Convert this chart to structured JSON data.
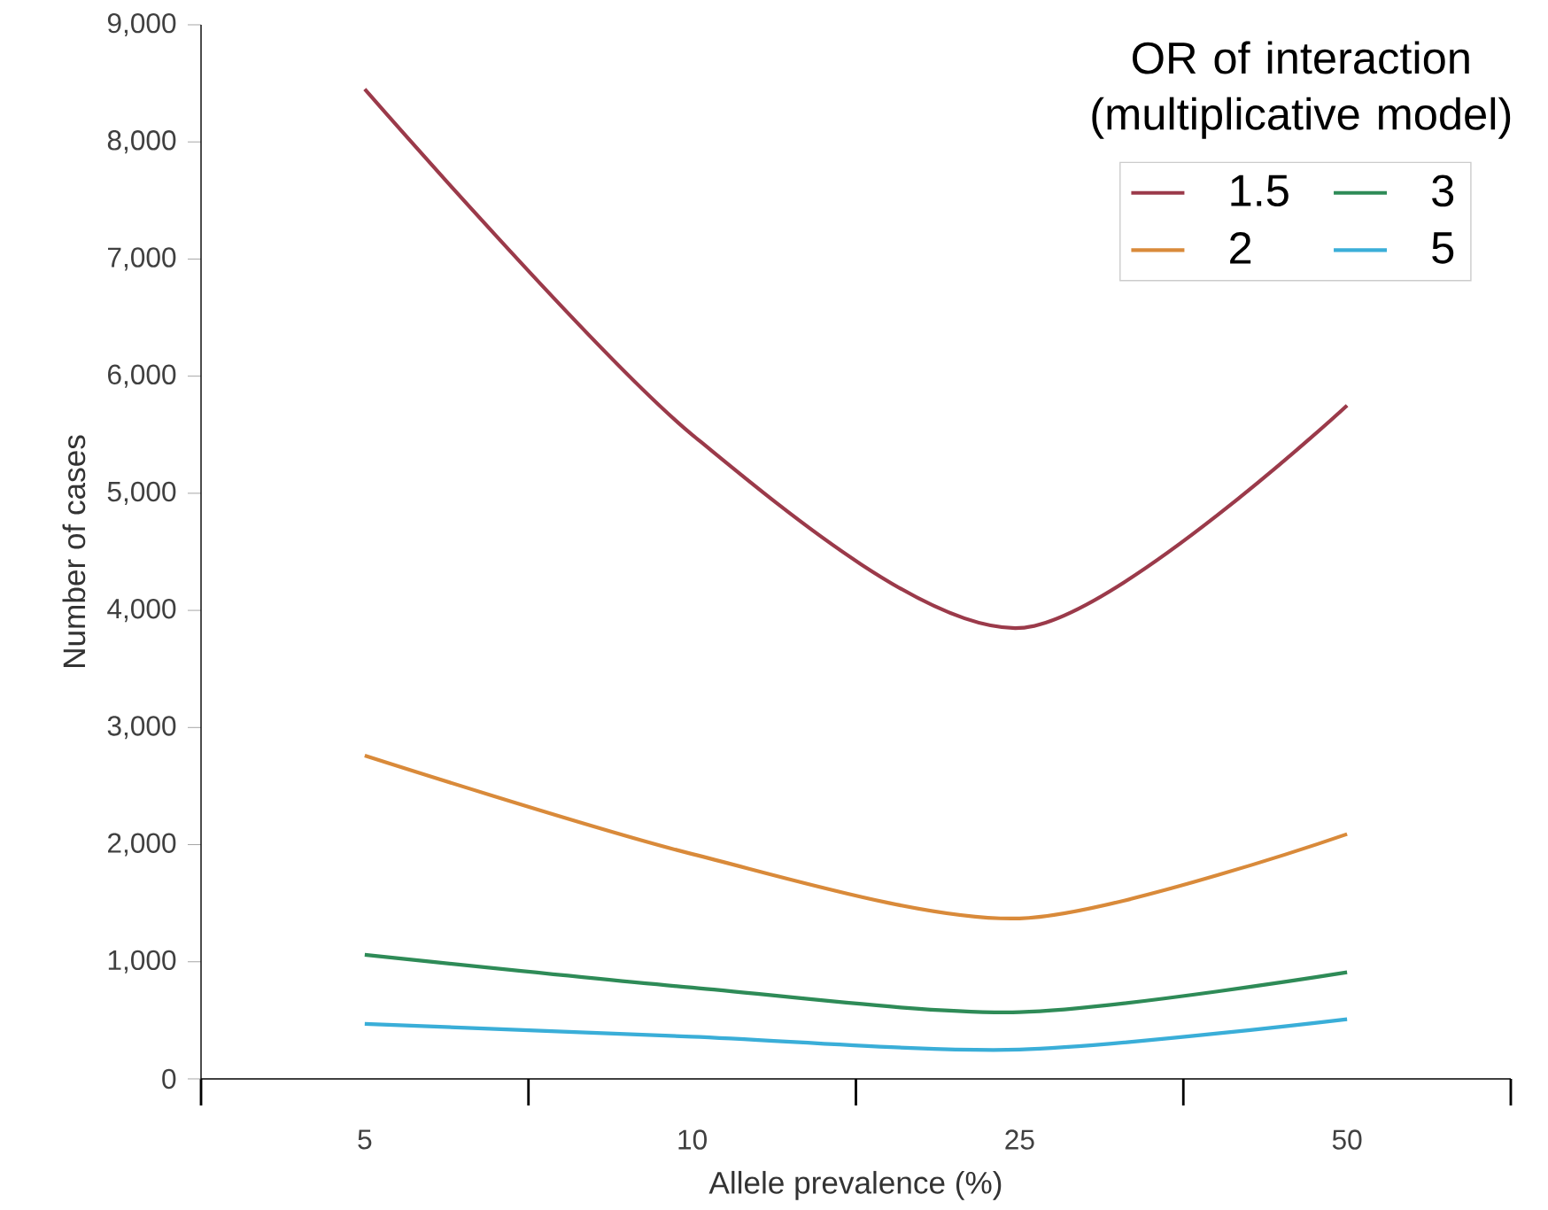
{
  "chart_data": {
    "type": "line",
    "xlabel": "Allele prevalence (%)",
    "ylabel": "Number of cases",
    "legend_title": "OR of interaction (multiplicative model)",
    "categories": [
      "5",
      "10",
      "25",
      "50"
    ],
    "series": [
      {
        "name": "1.5",
        "color": "#9b3a4a",
        "values": [
          8450,
          5500,
          3850,
          5750
        ]
      },
      {
        "name": "2",
        "color": "#d98a3a",
        "values": [
          2760,
          1920,
          1370,
          2090
        ]
      },
      {
        "name": "3",
        "color": "#2e8b57",
        "values": [
          1060,
          780,
          570,
          910
        ]
      },
      {
        "name": "5",
        "color": "#3aaed8",
        "values": [
          470,
          360,
          250,
          510
        ]
      }
    ],
    "ylim": [
      0,
      9000
    ],
    "yticks": [
      {
        "value": 0,
        "label": "0"
      },
      {
        "value": 1000,
        "label": "1,000"
      },
      {
        "value": 2000,
        "label": "2,000"
      },
      {
        "value": 3000,
        "label": "3,000"
      },
      {
        "value": 4000,
        "label": "4,000"
      },
      {
        "value": 5000,
        "label": "5,000"
      },
      {
        "value": 6000,
        "label": "6,000"
      },
      {
        "value": 7000,
        "label": "7,000"
      },
      {
        "value": 8000,
        "label": "8,000"
      },
      {
        "value": 9000,
        "label": "9,000"
      }
    ],
    "legend": "top right",
    "grid": false,
    "line_style": "solid",
    "marker": "none"
  }
}
